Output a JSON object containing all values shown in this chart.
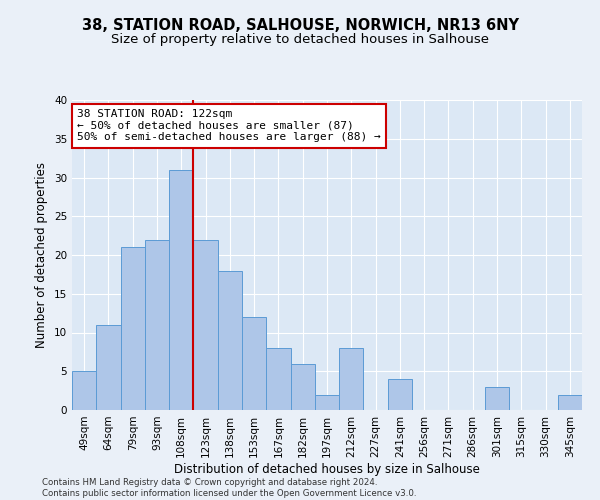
{
  "title_line1": "38, STATION ROAD, SALHOUSE, NORWICH, NR13 6NY",
  "title_line2": "Size of property relative to detached houses in Salhouse",
  "xlabel": "Distribution of detached houses by size in Salhouse",
  "ylabel": "Number of detached properties",
  "bar_labels": [
    "49sqm",
    "64sqm",
    "79sqm",
    "93sqm",
    "108sqm",
    "123sqm",
    "138sqm",
    "153sqm",
    "167sqm",
    "182sqm",
    "197sqm",
    "212sqm",
    "227sqm",
    "241sqm",
    "256sqm",
    "271sqm",
    "286sqm",
    "301sqm",
    "315sqm",
    "330sqm",
    "345sqm"
  ],
  "bar_values": [
    5,
    11,
    21,
    22,
    31,
    22,
    18,
    12,
    8,
    6,
    2,
    8,
    0,
    4,
    0,
    0,
    0,
    3,
    0,
    0,
    2
  ],
  "bar_color": "#aec6e8",
  "bar_edgecolor": "#5b9bd5",
  "annotation_label": "38 STATION ROAD: 122sqm",
  "annotation_line1": "← 50% of detached houses are smaller (87)",
  "annotation_line2": "50% of semi-detached houses are larger (88) →",
  "vline_x": 4.5,
  "ylim": [
    0,
    40
  ],
  "yticks": [
    0,
    5,
    10,
    15,
    20,
    25,
    30,
    35,
    40
  ],
  "footer_line1": "Contains HM Land Registry data © Crown copyright and database right 2024.",
  "footer_line2": "Contains public sector information licensed under the Open Government Licence v3.0.",
  "background_color": "#eaf0f8",
  "plot_bg_color": "#dce8f5",
  "grid_color": "#ffffff",
  "vline_color": "#cc0000",
  "box_edgecolor": "#cc0000",
  "title_fontsize": 10.5,
  "subtitle_fontsize": 9.5,
  "axis_label_fontsize": 8.5,
  "tick_fontsize": 7.5,
  "annotation_fontsize": 8,
  "footer_fontsize": 6.2
}
